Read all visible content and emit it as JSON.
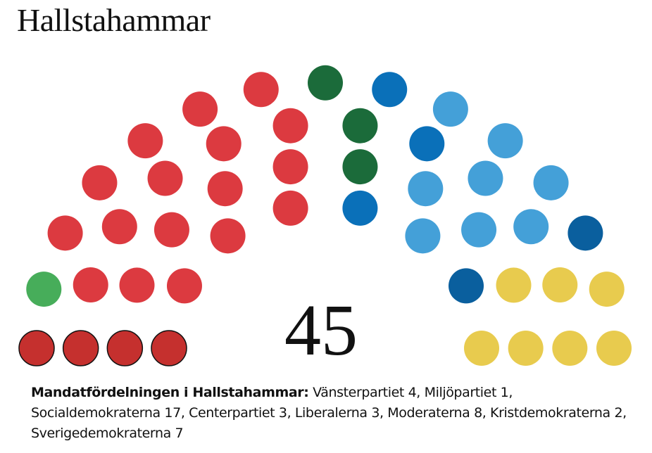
{
  "chart_data": {
    "type": "parliament",
    "title": "Hallstahammar",
    "total": 45,
    "caption_label": "Mandatfördelningen i Hallstahammar:",
    "categories": [
      "Vänsterpartiet",
      "Miljöpartiet",
      "Socialdemokraterna",
      "Centerpartiet",
      "Liberalerna",
      "Moderaterna",
      "Kristdemokraterna",
      "Sverigedemokraterna"
    ],
    "values": [
      4,
      1,
      17,
      3,
      3,
      8,
      2,
      7
    ],
    "colors": [
      "#c5302e",
      "#47ad5a",
      "#dc3a40",
      "#1b6b3a",
      "#0a70b9",
      "#44a0d8",
      "#0a5f9e",
      "#e8cb4e"
    ],
    "edgecolors": [
      "#111111",
      null,
      null,
      null,
      null,
      null,
      null,
      null
    ]
  }
}
